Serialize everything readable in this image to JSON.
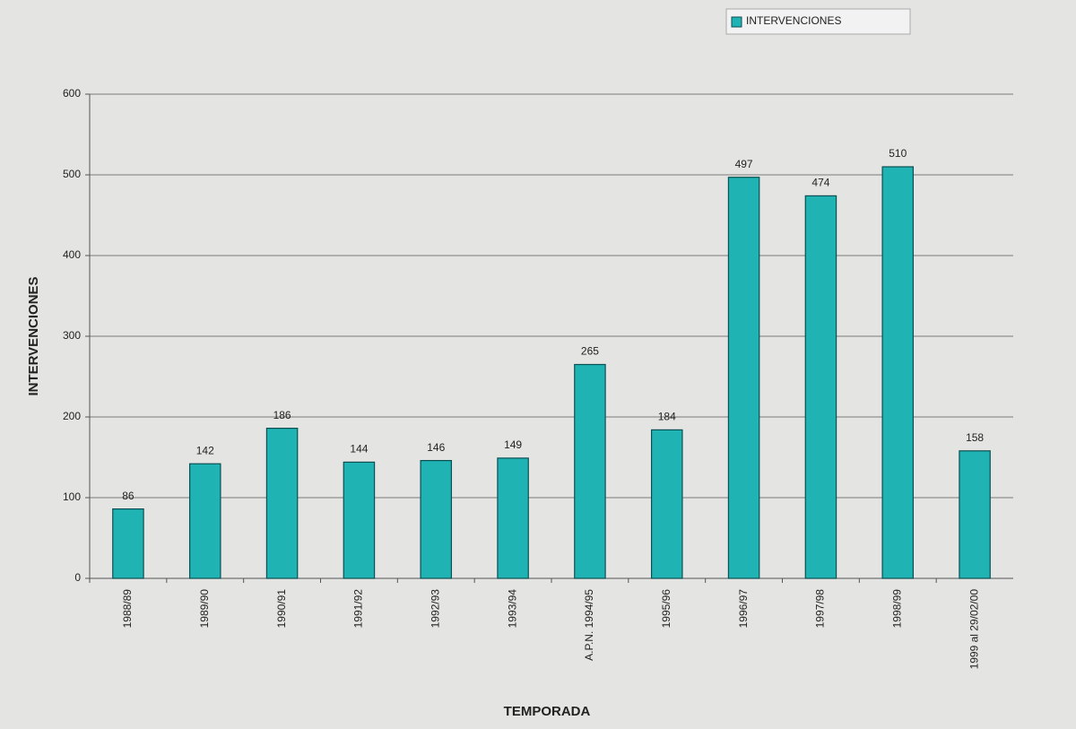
{
  "chart_data": {
    "type": "bar",
    "x_label": "TEMPORADA",
    "y_label": "INTERVENCIONES",
    "categories": [
      "1988/89",
      "1989/90",
      "1990/91",
      "1991/92",
      "1992/93",
      "1993/94",
      "A.P.N. 1994/95",
      "1995/96",
      "1996/97",
      "1997/98",
      "1998/99",
      "1999 al 29/02/00"
    ],
    "series": [
      {
        "name": "INTERVENCIONES",
        "color": "#1fb3b3",
        "values": [
          86,
          142,
          186,
          144,
          146,
          149,
          265,
          184,
          497,
          474,
          510,
          158
        ]
      }
    ],
    "ylim": [
      0,
      600
    ],
    "yticks": [
      0,
      100,
      200,
      300,
      400,
      500,
      600
    ],
    "grid": true,
    "data_labels": true,
    "legend": "top-right"
  }
}
